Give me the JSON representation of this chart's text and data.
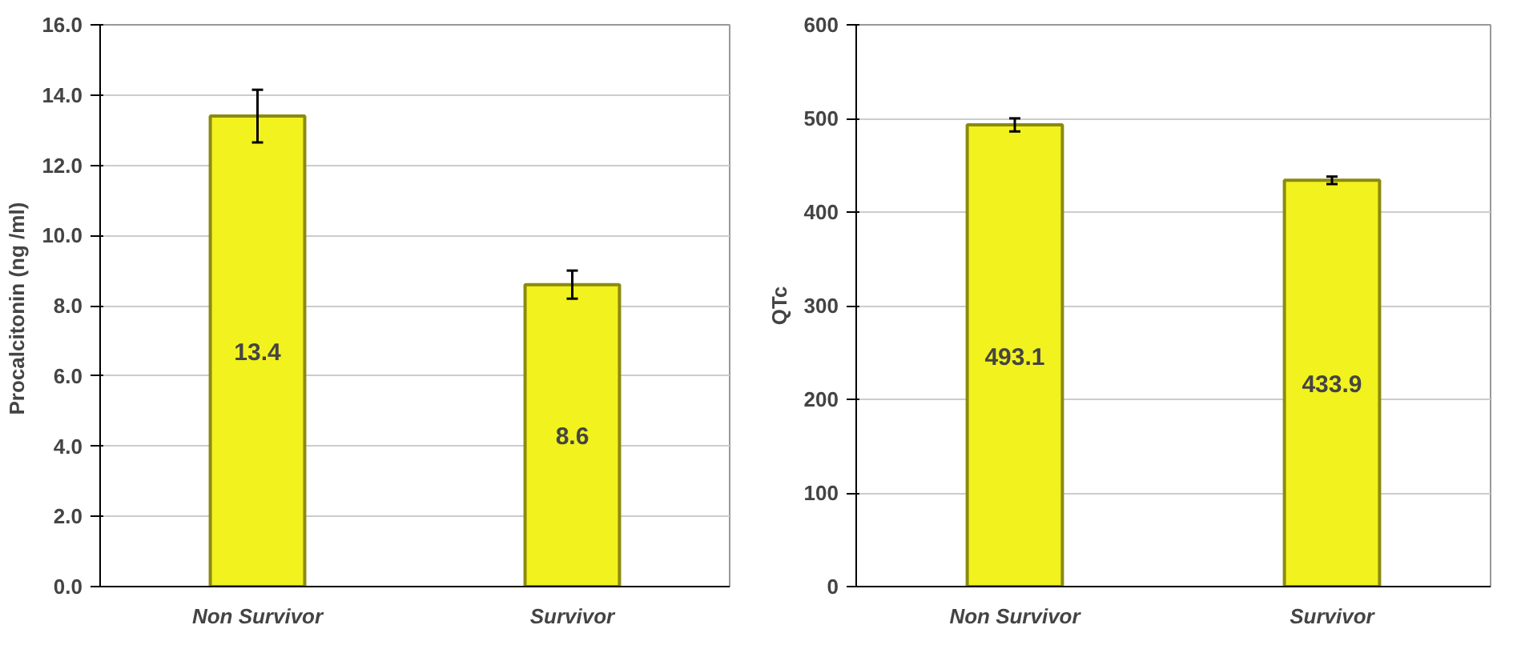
{
  "chart_data": [
    {
      "type": "bar",
      "ylabel": "Procalcitonin  (ng /ml)",
      "categories": [
        "Non Survivor",
        "Survivor"
      ],
      "series": [
        {
          "color": "#f2f21e",
          "values": [
            13.4,
            8.6
          ],
          "errors": [
            0.75,
            0.4
          ]
        }
      ],
      "data_labels": true,
      "ylim": [
        0,
        16
      ],
      "yticks": [
        {
          "value": 0,
          "label": "0.0"
        },
        {
          "value": 2,
          "label": "2.0"
        },
        {
          "value": 4,
          "label": "4.0"
        },
        {
          "value": 6,
          "label": "6.0"
        },
        {
          "value": 8,
          "label": "8.0"
        },
        {
          "value": 10,
          "label": "10.0"
        },
        {
          "value": 12,
          "label": "12.0"
        },
        {
          "value": 14,
          "label": "14.0"
        },
        {
          "value": 16,
          "label": "16.0"
        }
      ],
      "grid": "y"
    },
    {
      "type": "bar",
      "ylabel": "QTc",
      "categories": [
        "Non Survivor",
        "Survivor"
      ],
      "series": [
        {
          "color": "#f2f21e",
          "values": [
            493.1,
            433.9
          ],
          "errors": [
            7,
            4
          ]
        }
      ],
      "data_labels": true,
      "ylim": [
        0,
        600
      ],
      "yticks": [
        0,
        100,
        200,
        300,
        400,
        500,
        600
      ],
      "grid": "y"
    }
  ]
}
